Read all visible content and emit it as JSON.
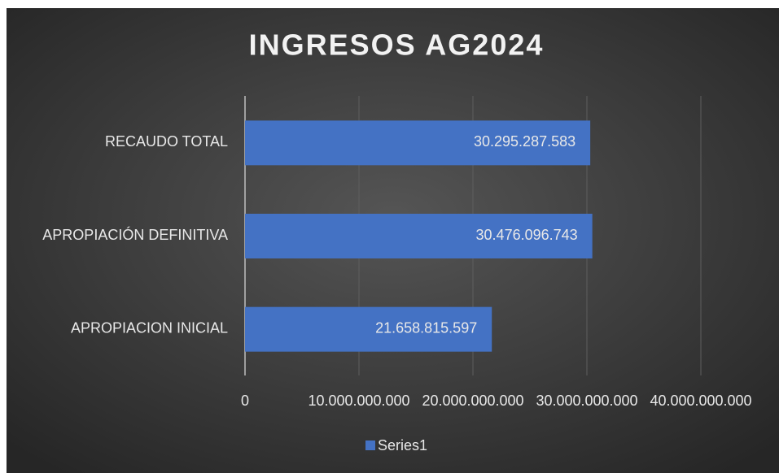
{
  "chart_data": {
    "type": "bar",
    "orientation": "horizontal",
    "title": "INGRESOS AG2024",
    "categories": [
      "APROPIACION INICIAL",
      "APROPIACIÓN DEFINITIVA",
      "RECAUDO TOTAL"
    ],
    "series": [
      {
        "name": "Series1",
        "color": "#4472c4",
        "values": [
          21658815597,
          30476096743,
          30295287583
        ],
        "value_labels": [
          "21.658.815.597",
          "30.476.096.743",
          "30.295.287.583"
        ]
      }
    ],
    "xlim": [
      0,
      40000000000
    ],
    "xticks": [
      0,
      {
        "value": 10000000000,
        "label": "10.000.000.000"
      },
      {
        "value": 20000000000,
        "label": "20.000.000.000"
      },
      {
        "value": 30000000000,
        "label": "30.000.000.000"
      },
      {
        "value": 40000000000,
        "label": "40.000.000.000"
      }
    ],
    "grid": true,
    "legend": "bottom"
  }
}
